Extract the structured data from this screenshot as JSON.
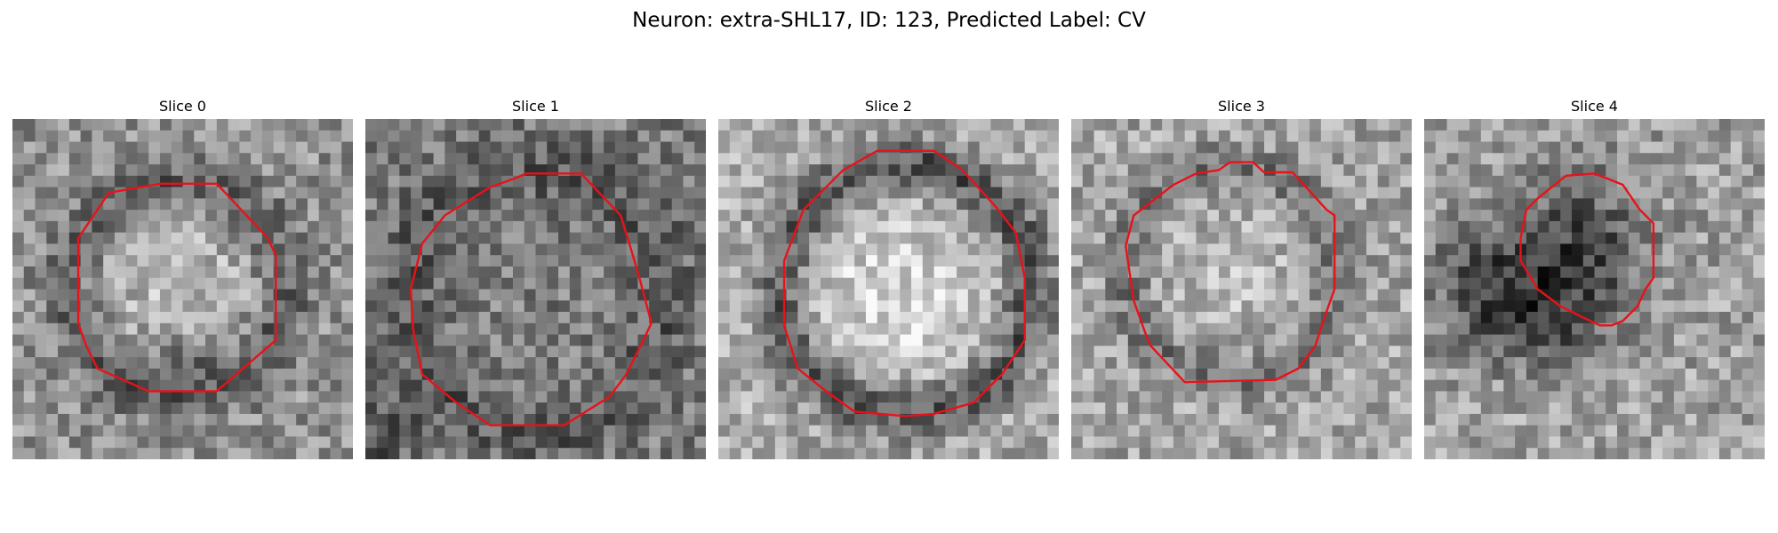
{
  "figure": {
    "title": "Neuron: extra-SHL17, ID: 123, Predicted Label: CV"
  },
  "style": {
    "contour_color": "#e8121a",
    "colormap": "gray"
  },
  "panels": [
    {
      "title": "Slice 0"
    },
    {
      "title": "Slice 1"
    },
    {
      "title": "Slice 2"
    },
    {
      "title": "Slice 3"
    },
    {
      "title": "Slice 4"
    }
  ]
}
